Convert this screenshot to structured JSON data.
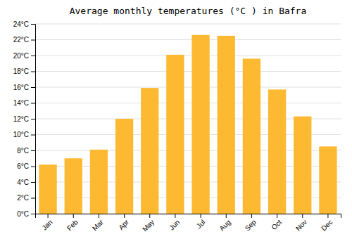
{
  "chart_data": {
    "type": "bar",
    "title": "Average monthly temperatures (°C ) in Bafra",
    "categories": [
      "Jan",
      "Feb",
      "Mar",
      "Apr",
      "May",
      "Jun",
      "Jul",
      "Aug",
      "Sep",
      "Oct",
      "Nov",
      "Dec"
    ],
    "values": [
      6.2,
      7.0,
      8.1,
      12.0,
      15.9,
      20.1,
      22.6,
      22.5,
      19.6,
      15.7,
      12.3,
      8.5
    ],
    "color": "#FDB931",
    "ylim": [
      0,
      24
    ],
    "yticks": [
      {
        "value": 0,
        "label": "0°C"
      },
      {
        "value": 2,
        "label": "2°C"
      },
      {
        "value": 4,
        "label": "4°C"
      },
      {
        "value": 6,
        "label": "6°C"
      },
      {
        "value": 8,
        "label": "8°C"
      },
      {
        "value": 10,
        "label": "10°C"
      },
      {
        "value": 12,
        "label": "12°C"
      },
      {
        "value": 14,
        "label": "14°C"
      },
      {
        "value": 16,
        "label": "16°C"
      },
      {
        "value": 18,
        "label": "18°C"
      },
      {
        "value": 20,
        "label": "20°C"
      },
      {
        "value": 22,
        "label": "22°C"
      },
      {
        "value": 24,
        "label": "24°C"
      }
    ],
    "grid": true
  }
}
